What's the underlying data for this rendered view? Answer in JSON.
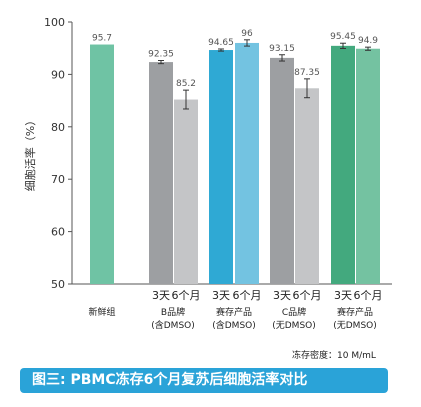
{
  "chart_data": {
    "type": "bar",
    "ylabel": "细胞活率（%）",
    "ylim": [
      50,
      100
    ],
    "yticks": [
      50,
      60,
      70,
      80,
      90,
      100
    ],
    "bars": [
      {
        "group": "新鲜组",
        "sub": "",
        "value": 95.7,
        "label": "95.7",
        "error": 0,
        "color": "#6fc3a4"
      },
      {
        "group": "B品牌(含DMSO)",
        "sub": "3天",
        "value": 92.35,
        "label": "92.35",
        "error": 0.3,
        "color": "#9d9fa2"
      },
      {
        "group": "B品牌(含DMSO)",
        "sub": "6个月",
        "value": 85.2,
        "label": "85.2",
        "error": 1.8,
        "color": "#c4c5c7"
      },
      {
        "group": "赛存产品(含DMSO)",
        "sub": "3天",
        "value": 94.65,
        "label": "94.65",
        "error": 0.2,
        "color": "#2fa9d4"
      },
      {
        "group": "赛存产品(含DMSO)",
        "sub": "6个月",
        "value": 96,
        "label": "96",
        "error": 0.6,
        "color": "#73c3e1"
      },
      {
        "group": "C品牌(无DMSO)",
        "sub": "3天",
        "value": 93.15,
        "label": "93.15",
        "error": 0.6,
        "color": "#9d9fa2"
      },
      {
        "group": "C品牌(无DMSO)",
        "sub": "6个月",
        "value": 87.35,
        "label": "87.35",
        "error": 1.8,
        "color": "#c4c5c7"
      },
      {
        "group": "赛存产品(无DMSO)",
        "sub": "3天",
        "value": 95.45,
        "label": "95.45",
        "error": 0.5,
        "color": "#43a97e"
      },
      {
        "group": "赛存产品(无DMSO)",
        "sub": "6个月",
        "value": 94.9,
        "label": "94.9",
        "error": 0.3,
        "color": "#74c2a1"
      }
    ],
    "groups": [
      {
        "sub_labels": [],
        "name_lines": [
          "新鲜组"
        ]
      },
      {
        "sub_labels": [
          "3天",
          "6个月"
        ],
        "name_lines": [
          "B品牌",
          "(含DMSO)"
        ]
      },
      {
        "sub_labels": [
          "3天",
          "6个月"
        ],
        "name_lines": [
          "赛存产品",
          "(含DMSO)"
        ]
      },
      {
        "sub_labels": [
          "3天",
          "6个月"
        ],
        "name_lines": [
          "C品牌",
          "(无DMSO)"
        ]
      },
      {
        "sub_labels": [
          "3天",
          "6个月"
        ],
        "name_lines": [
          "赛存产品",
          "(无DMSO)"
        ]
      }
    ]
  },
  "note": "冻存密度：10 M/mL",
  "caption": "图三: PBMC冻存6个月复苏后细胞活率对比"
}
